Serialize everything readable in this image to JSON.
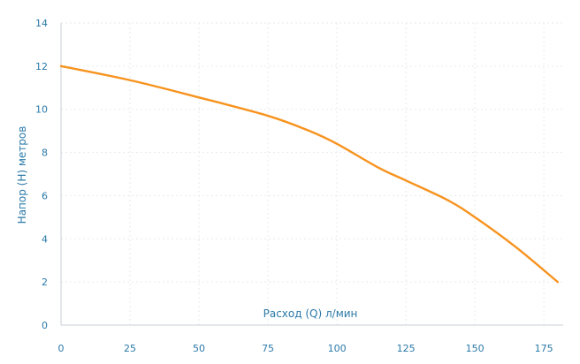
{
  "chart_data": {
    "type": "line",
    "xlabel": "Расход (Q) л/мин",
    "ylabel": "Напор (H) метров",
    "xlim": [
      0,
      182
    ],
    "ylim": [
      0,
      14
    ],
    "x_ticks": [
      "0",
      "25",
      "50",
      "75",
      "100",
      "125",
      "150",
      "175"
    ],
    "y_ticks": [
      "0",
      "2",
      "4",
      "6",
      "8",
      "10",
      "12",
      "14"
    ],
    "grid": true,
    "line_color": "#f7931e",
    "text_color": "#2a79a8",
    "series": [
      {
        "x": [
          0,
          25,
          50,
          75,
          90,
          100,
          115,
          125,
          140,
          150,
          165,
          180
        ],
        "values": [
          12.0,
          11.35,
          10.55,
          9.7,
          9.0,
          8.4,
          7.3,
          6.7,
          5.8,
          5.0,
          3.6,
          2.0
        ]
      }
    ]
  }
}
